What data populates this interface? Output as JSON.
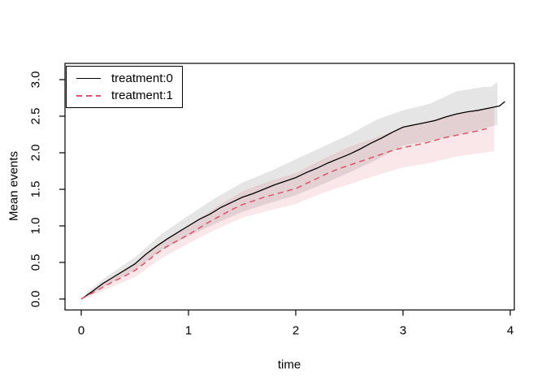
{
  "figure": {
    "background": "#ffffff",
    "axis_color": "#000000"
  },
  "chart_data": {
    "type": "line",
    "title": "",
    "xlabel": "time",
    "ylabel": "Mean events",
    "xlim": [
      0,
      4
    ],
    "ylim": [
      0,
      3
    ],
    "grid": "off",
    "x_ticks": [
      {
        "v": 0,
        "label": "0"
      },
      {
        "v": 1,
        "label": "1"
      },
      {
        "v": 2,
        "label": "2"
      },
      {
        "v": 3,
        "label": "3"
      },
      {
        "v": 4,
        "label": "4"
      }
    ],
    "y_ticks": [
      {
        "v": 0.0,
        "label": "0.0"
      },
      {
        "v": 0.5,
        "label": "0.5"
      },
      {
        "v": 1.0,
        "label": "1.0"
      },
      {
        "v": 1.5,
        "label": "1.5"
      },
      {
        "v": 2.0,
        "label": "2.0"
      },
      {
        "v": 2.5,
        "label": "2.5"
      },
      {
        "v": 3.0,
        "label": "3.0"
      }
    ],
    "legend": {
      "position": "topleft",
      "entries": [
        {
          "label": "treatment:0",
          "line": "solid",
          "color": "#000000"
        },
        {
          "label": "treatment:1",
          "line": "dashed",
          "color": "#DF536B"
        }
      ]
    },
    "bands": [
      {
        "name": "confidence-band-treatment-0",
        "color": "rgba(0,0,0,0.10)",
        "upper": [
          [
            0.05,
            0.09
          ],
          [
            0.25,
            0.32
          ],
          [
            0.5,
            0.57
          ],
          [
            0.75,
            0.89
          ],
          [
            1.0,
            1.14
          ],
          [
            1.25,
            1.38
          ],
          [
            1.5,
            1.59
          ],
          [
            1.75,
            1.74
          ],
          [
            2.0,
            1.91
          ],
          [
            2.25,
            2.08
          ],
          [
            2.5,
            2.25
          ],
          [
            2.75,
            2.45
          ],
          [
            3.0,
            2.58
          ],
          [
            3.25,
            2.67
          ],
          [
            3.5,
            2.84
          ],
          [
            3.75,
            2.9
          ],
          [
            3.82,
            2.9
          ],
          [
            3.88,
            2.97
          ]
        ],
        "lower": [
          [
            0.05,
            0.02
          ],
          [
            0.25,
            0.2
          ],
          [
            0.5,
            0.4
          ],
          [
            0.75,
            0.67
          ],
          [
            1.0,
            0.86
          ],
          [
            1.25,
            1.03
          ],
          [
            1.5,
            1.19
          ],
          [
            1.75,
            1.31
          ],
          [
            2.0,
            1.42
          ],
          [
            2.25,
            1.57
          ],
          [
            2.5,
            1.73
          ],
          [
            2.75,
            1.9
          ],
          [
            3.0,
            2.1
          ],
          [
            3.25,
            2.16
          ],
          [
            3.5,
            2.24
          ],
          [
            3.75,
            2.33
          ],
          [
            3.88,
            2.38
          ]
        ]
      },
      {
        "name": "confidence-band-treatment-1",
        "color": "rgba(223,83,107,0.14)",
        "upper": [
          [
            0.05,
            0.07
          ],
          [
            0.25,
            0.26
          ],
          [
            0.5,
            0.48
          ],
          [
            0.75,
            0.78
          ],
          [
            1.0,
            1.0
          ],
          [
            1.25,
            1.25
          ],
          [
            1.5,
            1.47
          ],
          [
            1.75,
            1.61
          ],
          [
            2.0,
            1.72
          ],
          [
            2.25,
            1.91
          ],
          [
            2.5,
            2.08
          ],
          [
            2.75,
            2.21
          ],
          [
            3.0,
            2.34
          ],
          [
            3.25,
            2.44
          ],
          [
            3.5,
            2.54
          ],
          [
            3.75,
            2.6
          ],
          [
            3.85,
            2.62
          ]
        ],
        "lower": [
          [
            0.05,
            0.01
          ],
          [
            0.25,
            0.14
          ],
          [
            0.5,
            0.3
          ],
          [
            0.75,
            0.56
          ],
          [
            1.0,
            0.76
          ],
          [
            1.25,
            0.95
          ],
          [
            1.5,
            1.11
          ],
          [
            1.75,
            1.21
          ],
          [
            2.0,
            1.3
          ],
          [
            2.25,
            1.45
          ],
          [
            2.5,
            1.57
          ],
          [
            2.75,
            1.69
          ],
          [
            3.0,
            1.8
          ],
          [
            3.25,
            1.86
          ],
          [
            3.5,
            1.95
          ],
          [
            3.75,
            2.0
          ],
          [
            3.85,
            2.02
          ]
        ]
      }
    ],
    "series": [
      {
        "name": "treatment:0",
        "color": "#000000",
        "dash": "solid",
        "width": 1.3,
        "points": [
          [
            0,
            0
          ],
          [
            0.1,
            0.1
          ],
          [
            0.2,
            0.21
          ],
          [
            0.3,
            0.3
          ],
          [
            0.4,
            0.39
          ],
          [
            0.5,
            0.48
          ],
          [
            0.6,
            0.61
          ],
          [
            0.7,
            0.72
          ],
          [
            0.8,
            0.82
          ],
          [
            0.9,
            0.91
          ],
          [
            1.0,
            1.0
          ],
          [
            1.1,
            1.09
          ],
          [
            1.2,
            1.16
          ],
          [
            1.3,
            1.25
          ],
          [
            1.4,
            1.32
          ],
          [
            1.5,
            1.39
          ],
          [
            1.6,
            1.44
          ],
          [
            1.7,
            1.5
          ],
          [
            1.8,
            1.56
          ],
          [
            1.9,
            1.61
          ],
          [
            2.0,
            1.66
          ],
          [
            2.1,
            1.73
          ],
          [
            2.2,
            1.79
          ],
          [
            2.3,
            1.86
          ],
          [
            2.4,
            1.92
          ],
          [
            2.5,
            1.98
          ],
          [
            2.6,
            2.05
          ],
          [
            2.7,
            2.13
          ],
          [
            2.8,
            2.2
          ],
          [
            2.9,
            2.28
          ],
          [
            3.0,
            2.35
          ],
          [
            3.1,
            2.38
          ],
          [
            3.2,
            2.41
          ],
          [
            3.3,
            2.44
          ],
          [
            3.4,
            2.49
          ],
          [
            3.5,
            2.53
          ],
          [
            3.6,
            2.56
          ],
          [
            3.7,
            2.58
          ],
          [
            3.8,
            2.61
          ],
          [
            3.9,
            2.64
          ],
          [
            3.95,
            2.7
          ]
        ]
      },
      {
        "name": "treatment:1",
        "color": "#DF536B",
        "dash": "dashed",
        "width": 1.5,
        "points": [
          [
            0,
            0
          ],
          [
            0.1,
            0.08
          ],
          [
            0.2,
            0.16
          ],
          [
            0.3,
            0.24
          ],
          [
            0.4,
            0.31
          ],
          [
            0.5,
            0.39
          ],
          [
            0.6,
            0.5
          ],
          [
            0.7,
            0.62
          ],
          [
            0.8,
            0.72
          ],
          [
            0.9,
            0.8
          ],
          [
            1.0,
            0.88
          ],
          [
            1.1,
            0.97
          ],
          [
            1.2,
            1.06
          ],
          [
            1.3,
            1.14
          ],
          [
            1.4,
            1.22
          ],
          [
            1.5,
            1.29
          ],
          [
            1.6,
            1.34
          ],
          [
            1.7,
            1.39
          ],
          [
            1.8,
            1.43
          ],
          [
            1.9,
            1.47
          ],
          [
            2.0,
            1.51
          ],
          [
            2.1,
            1.58
          ],
          [
            2.2,
            1.65
          ],
          [
            2.3,
            1.72
          ],
          [
            2.4,
            1.78
          ],
          [
            2.5,
            1.83
          ],
          [
            2.6,
            1.88
          ],
          [
            2.7,
            1.93
          ],
          [
            2.8,
            1.98
          ],
          [
            2.9,
            2.03
          ],
          [
            3.0,
            2.07
          ],
          [
            3.1,
            2.1
          ],
          [
            3.2,
            2.13
          ],
          [
            3.3,
            2.17
          ],
          [
            3.4,
            2.21
          ],
          [
            3.5,
            2.24
          ],
          [
            3.6,
            2.27
          ],
          [
            3.7,
            2.3
          ],
          [
            3.78,
            2.33
          ]
        ]
      }
    ]
  }
}
